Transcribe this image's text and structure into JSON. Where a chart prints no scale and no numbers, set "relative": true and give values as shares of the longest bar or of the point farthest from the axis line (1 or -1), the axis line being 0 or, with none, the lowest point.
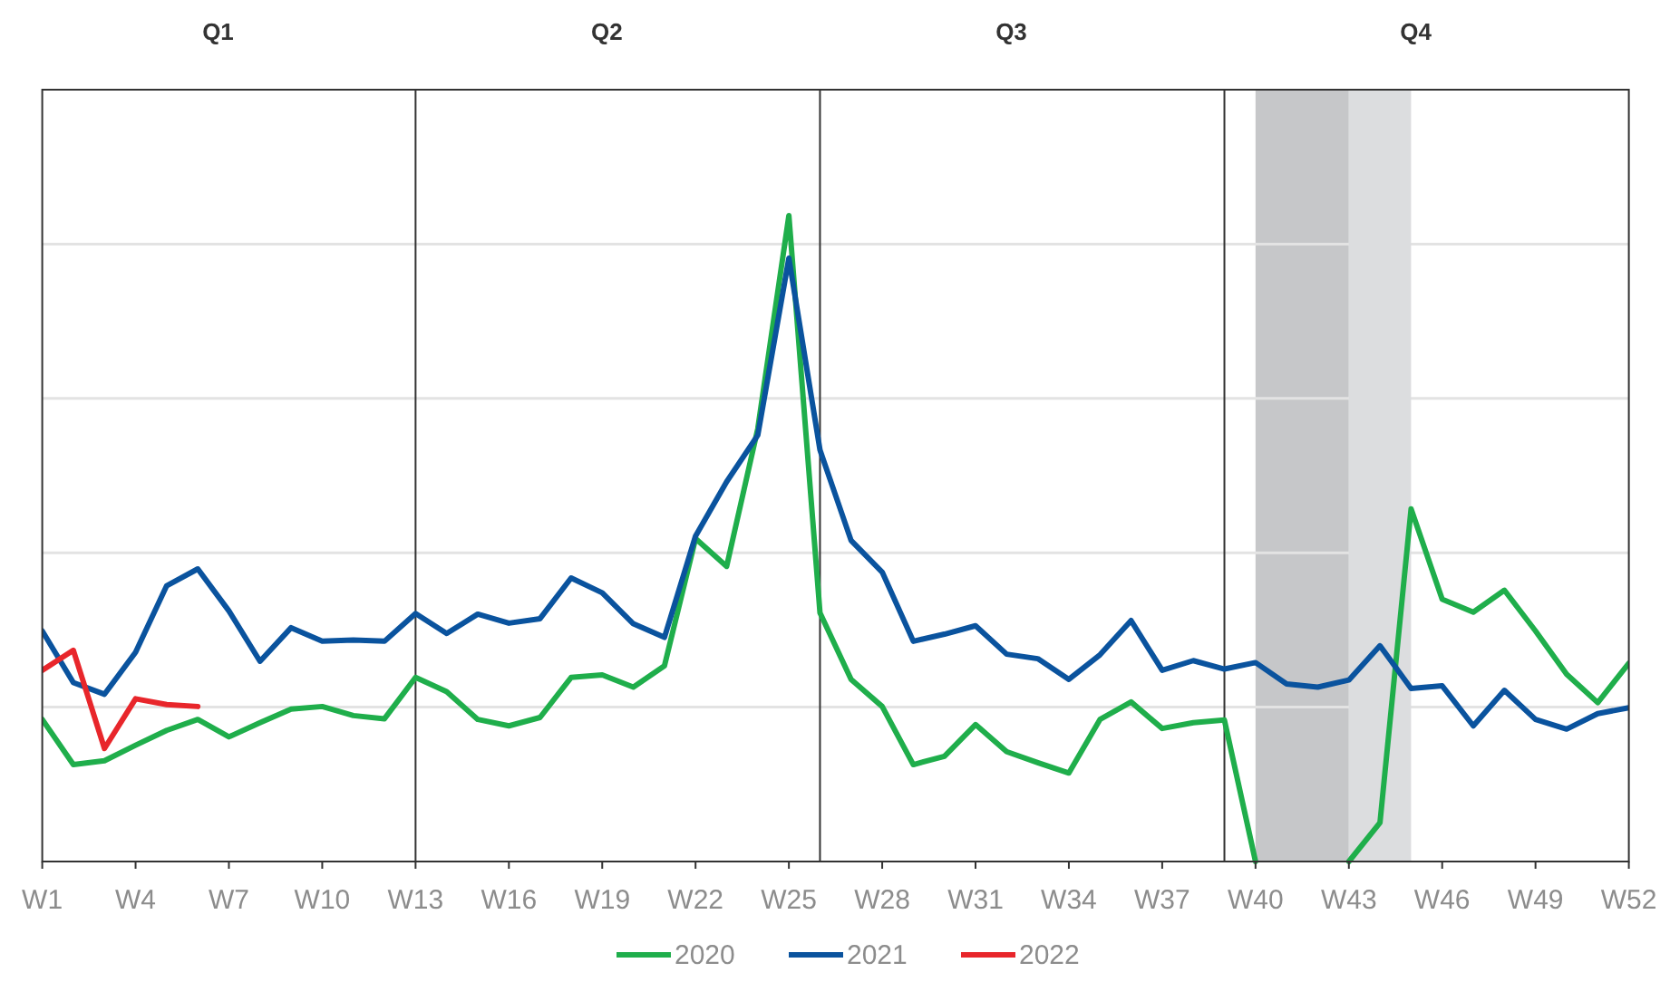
{
  "chart_data": {
    "type": "line",
    "relative": true,
    "grid": true,
    "legend": "bottom",
    "line_style": "solid",
    "marker": "none",
    "categories": [
      "W1",
      null,
      null,
      "W4",
      null,
      null,
      "W7",
      null,
      null,
      "W10",
      null,
      null,
      "W13",
      null,
      null,
      "W16",
      null,
      null,
      "W19",
      null,
      null,
      "W22",
      null,
      null,
      "W25",
      null,
      null,
      "W28",
      null,
      null,
      "W31",
      null,
      null,
      "W34",
      null,
      null,
      "W37",
      null,
      null,
      "W40",
      null,
      null,
      "W43",
      null,
      null,
      "W46",
      null,
      null,
      "W49",
      null,
      null,
      "W52"
    ],
    "series": [
      {
        "name": "2020",
        "color": "#1fae4b",
        "values": [
          0.22,
          0.15,
          0.156,
          0.18,
          0.203,
          0.22,
          0.193,
          0.215,
          0.236,
          0.24,
          0.226,
          0.221,
          0.285,
          0.263,
          0.22,
          0.21,
          0.223,
          0.285,
          0.289,
          0.27,
          0.303,
          0.5,
          0.457,
          0.67,
          1.0,
          0.385,
          0.282,
          0.24,
          0.15,
          0.163,
          0.212,
          0.17,
          0.153,
          0.137,
          0.22,
          0.247,
          0.206,
          0.215,
          0.219,
          0,
          null,
          null,
          0,
          0.06,
          0.546,
          0.406,
          0.386,
          0.42,
          0.357,
          0.29,
          0.246,
          0.307
        ]
      },
      {
        "name": "2021",
        "color": "#0a539e",
        "values": [
          0.357,
          0.277,
          0.259,
          0.324,
          0.427,
          0.453,
          0.388,
          0.31,
          0.362,
          0.341,
          0.343,
          0.341,
          0.384,
          0.353,
          0.383,
          0.369,
          0.376,
          0.439,
          0.416,
          0.368,
          0.347,
          0.504,
          0.588,
          0.66,
          0.934,
          0.637,
          0.497,
          0.448,
          0.341,
          0.352,
          0.365,
          0.321,
          0.314,
          0.282,
          0.32,
          0.373,
          0.296,
          0.311,
          0.298,
          0.308,
          0.275,
          0.27,
          0.281,
          0.334,
          0.268,
          0.272,
          0.21,
          0.265,
          0.22,
          0.205,
          0.229,
          0.238
        ]
      },
      {
        "name": "2022",
        "color": "#e8262b",
        "values": [
          0.296,
          0.327,
          0.175,
          0.252,
          0.243,
          0.24,
          null,
          null,
          null,
          null,
          null,
          null,
          null,
          null,
          null,
          null,
          null,
          null,
          null,
          null,
          null,
          null,
          null,
          null,
          null,
          null,
          null,
          null,
          null,
          null,
          null,
          null,
          null,
          null,
          null,
          null,
          null,
          null,
          null,
          null,
          null,
          null,
          null,
          null,
          null,
          null,
          null,
          null,
          null,
          null,
          null,
          null
        ]
      }
    ],
    "bands": [
      {
        "axis": "x",
        "from": "W40",
        "to": "W43",
        "color": "#c6c7c9"
      }
    ],
    "annotations": [
      "Q1",
      "Q2",
      "Q3",
      "Q4"
    ]
  }
}
